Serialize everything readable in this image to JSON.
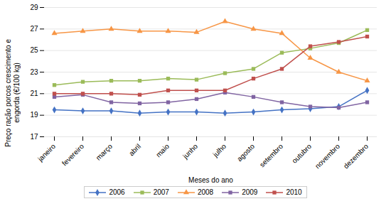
{
  "chart_data": {
    "type": "line",
    "categories": [
      "janeiro",
      "fevereiro",
      "março",
      "abril",
      "maio",
      "junho",
      "julho",
      "agosto",
      "setembro",
      "outubro",
      "novembro",
      "dezembro"
    ],
    "series": [
      {
        "name": "2006",
        "color": "#4472C4",
        "marker": "diamond",
        "values": [
          19.5,
          19.4,
          19.4,
          19.2,
          19.3,
          19.3,
          19.2,
          19.3,
          19.5,
          19.6,
          19.8,
          21.3
        ]
      },
      {
        "name": "2007",
        "color": "#9BBB59",
        "marker": "square",
        "values": [
          21.8,
          22.1,
          22.2,
          22.2,
          22.4,
          22.3,
          22.9,
          23.3,
          24.8,
          25.2,
          25.7,
          26.9
        ]
      },
      {
        "name": "2008",
        "color": "#F79646",
        "marker": "triangle",
        "values": [
          26.6,
          26.8,
          27.0,
          26.8,
          26.8,
          26.7,
          27.7,
          27.0,
          26.6,
          24.3,
          23.0,
          22.2
        ]
      },
      {
        "name": "2009",
        "color": "#8064A2",
        "marker": "square",
        "values": [
          20.7,
          20.9,
          20.2,
          20.1,
          20.2,
          20.5,
          21.1,
          20.7,
          20.2,
          19.8,
          19.7,
          20.2
        ]
      },
      {
        "name": "2010",
        "color": "#C0504D",
        "marker": "square",
        "values": [
          21.0,
          21.0,
          21.0,
          20.9,
          21.3,
          21.3,
          21.3,
          22.4,
          23.3,
          25.4,
          25.8,
          26.3
        ]
      }
    ],
    "xlabel": "Meses do ano",
    "ylabel": "Preço ração porcos crescimento e\nengorda (€/100 kg)",
    "ylim": [
      17,
      29
    ],
    "yticks": [
      17,
      19,
      21,
      23,
      25,
      27,
      29
    ],
    "grid": true,
    "legend": "bottom"
  }
}
